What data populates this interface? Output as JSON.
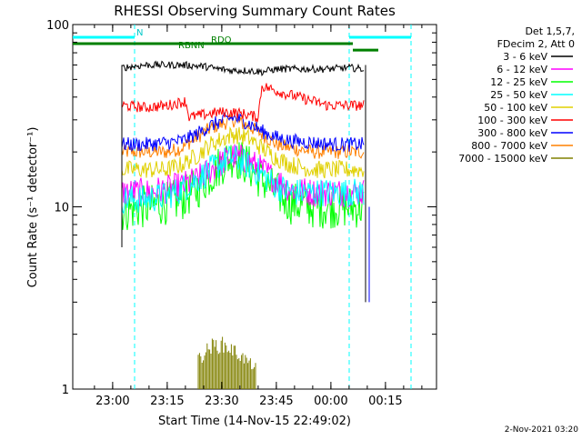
{
  "chart_data": {
    "type": "line",
    "title": "RHESSI Observing Summary Count Rates",
    "xlabel": "Start Time (14-Nov-15 22:49:02)",
    "ylabel": "Count Rate (s⁻¹ detector⁻¹)",
    "y_scale": "log",
    "ylim": [
      1,
      100
    ],
    "x_unit": "minutes since 22:49:02",
    "xlim": [
      0,
      100
    ],
    "x_tick_labels": [
      "23:00",
      "23:15",
      "23:30",
      "23:45",
      "00:00",
      "00:15"
    ],
    "x_tick_positions": [
      10.97,
      25.97,
      40.97,
      55.97,
      70.97,
      85.97
    ],
    "y_tick_labels": [
      "1",
      "10",
      "100"
    ],
    "y_tick_values": [
      1,
      10,
      100
    ],
    "legend_header": [
      "Det 1,5,7,",
      "FDecim 2, Att 0"
    ],
    "legend_placement": "right",
    "data_window": [
      13.5,
      80.5
    ],
    "series": [
      {
        "name": "3 - 6 keV",
        "color": "#000000",
        "points": [
          [
            13.5,
            58
          ],
          [
            20,
            60
          ],
          [
            30,
            60
          ],
          [
            36,
            59
          ],
          [
            40,
            57
          ],
          [
            44,
            56
          ],
          [
            48,
            56
          ],
          [
            52,
            55
          ],
          [
            56,
            57
          ],
          [
            62,
            57
          ],
          [
            70,
            57
          ],
          [
            76,
            58
          ],
          [
            80,
            57
          ]
        ]
      },
      {
        "name": "6 - 12 keV",
        "color": "#ff00ff",
        "points": [
          [
            13.5,
            12
          ],
          [
            20,
            12
          ],
          [
            26,
            12.5
          ],
          [
            30,
            13
          ],
          [
            34,
            14
          ],
          [
            38,
            16
          ],
          [
            42,
            18
          ],
          [
            44,
            19
          ],
          [
            48,
            18
          ],
          [
            52,
            16
          ],
          [
            56,
            14
          ],
          [
            60,
            12.5
          ],
          [
            66,
            12
          ],
          [
            72,
            12
          ],
          [
            76,
            12
          ],
          [
            80,
            12
          ]
        ]
      },
      {
        "name": "12 - 25 keV",
        "color": "#00ff00",
        "points": [
          [
            13.5,
            9.5
          ],
          [
            20,
            10
          ],
          [
            26,
            10.5
          ],
          [
            30,
            11
          ],
          [
            34,
            12.5
          ],
          [
            38,
            15
          ],
          [
            42,
            18
          ],
          [
            44,
            19
          ],
          [
            48,
            17
          ],
          [
            52,
            14
          ],
          [
            56,
            12
          ],
          [
            60,
            10.5
          ],
          [
            66,
            10
          ],
          [
            72,
            10
          ],
          [
            76,
            10
          ],
          [
            80,
            10
          ]
        ]
      },
      {
        "name": "25 - 50 keV",
        "color": "#00ffff",
        "points": [
          [
            13.5,
            11
          ],
          [
            20,
            11
          ],
          [
            26,
            11.5
          ],
          [
            30,
            12.5
          ],
          [
            34,
            14
          ],
          [
            38,
            16
          ],
          [
            42,
            18
          ],
          [
            44,
            18.5
          ],
          [
            48,
            17
          ],
          [
            52,
            15
          ],
          [
            56,
            13
          ],
          [
            60,
            12
          ],
          [
            66,
            12
          ],
          [
            72,
            12
          ],
          [
            76,
            12
          ],
          [
            80,
            12
          ]
        ]
      },
      {
        "name": "50 - 100 keV",
        "color": "#e0d000",
        "points": [
          [
            13.5,
            16
          ],
          [
            20,
            16
          ],
          [
            26,
            16
          ],
          [
            30,
            17
          ],
          [
            34,
            19
          ],
          [
            38,
            22
          ],
          [
            42,
            24
          ],
          [
            44,
            25
          ],
          [
            48,
            24
          ],
          [
            52,
            21
          ],
          [
            56,
            18.5
          ],
          [
            60,
            17
          ],
          [
            66,
            16
          ],
          [
            72,
            16
          ],
          [
            76,
            16
          ],
          [
            80,
            16
          ]
        ]
      },
      {
        "name": "100 - 300 keV",
        "color": "#ff0000",
        "points": [
          [
            13.5,
            36
          ],
          [
            20,
            35
          ],
          [
            26,
            36
          ],
          [
            31,
            38
          ],
          [
            32,
            31
          ],
          [
            36,
            32
          ],
          [
            40,
            33
          ],
          [
            44,
            33
          ],
          [
            48,
            32
          ],
          [
            51,
            31
          ],
          [
            52,
            46
          ],
          [
            58,
            42
          ],
          [
            64,
            39
          ],
          [
            70,
            36
          ],
          [
            76,
            36
          ],
          [
            80,
            36
          ]
        ]
      },
      {
        "name": "300 - 800 keV",
        "color": "#0000ff",
        "points": [
          [
            13.5,
            22
          ],
          [
            20,
            22
          ],
          [
            26,
            22.5
          ],
          [
            30,
            23
          ],
          [
            34,
            25
          ],
          [
            38,
            28
          ],
          [
            42,
            30
          ],
          [
            44,
            31
          ],
          [
            48,
            29
          ],
          [
            52,
            26
          ],
          [
            56,
            24
          ],
          [
            60,
            23
          ],
          [
            66,
            22.5
          ],
          [
            72,
            22
          ],
          [
            76,
            22
          ],
          [
            80,
            22
          ]
        ]
      },
      {
        "name": "800 - 7000 keV",
        "color": "#ff8000",
        "points": [
          [
            13.5,
            20
          ],
          [
            20,
            20
          ],
          [
            26,
            20
          ],
          [
            30,
            21
          ],
          [
            34,
            24
          ],
          [
            38,
            27
          ],
          [
            42,
            29
          ],
          [
            44,
            30
          ],
          [
            48,
            28
          ],
          [
            52,
            25
          ],
          [
            56,
            22
          ],
          [
            60,
            21
          ],
          [
            66,
            20
          ],
          [
            72,
            20
          ],
          [
            76,
            20
          ],
          [
            80,
            20
          ]
        ]
      },
      {
        "name": "7000 - 15000 keV",
        "color": "#808000",
        "points": [
          [
            35,
            1.6
          ],
          [
            38,
            1.9
          ],
          [
            41,
            1.95
          ],
          [
            44,
            1.8
          ],
          [
            47,
            1.6
          ],
          [
            50,
            1.4
          ]
        ]
      }
    ],
    "annotations": [
      {
        "label": "N",
        "x": 17.5,
        "ylog": 1.93
      },
      {
        "label": "RDO",
        "x": 38,
        "ylog": 1.89
      },
      {
        "label": "RBNN",
        "x": 29,
        "ylog": 1.86
      }
    ],
    "vlines": [
      17,
      76,
      93
    ],
    "bands": [
      {
        "color": "#00ffff",
        "segments": [
          [
            0,
            17
          ],
          [
            76,
            93
          ]
        ]
      },
      {
        "color": "#008000",
        "segments": [
          [
            0,
            56
          ],
          [
            56,
            77
          ]
        ]
      },
      {
        "color": "#008000",
        "segments": [
          [
            77,
            84
          ]
        ]
      }
    ],
    "footer_date": "2-Nov-2021 03:20"
  }
}
